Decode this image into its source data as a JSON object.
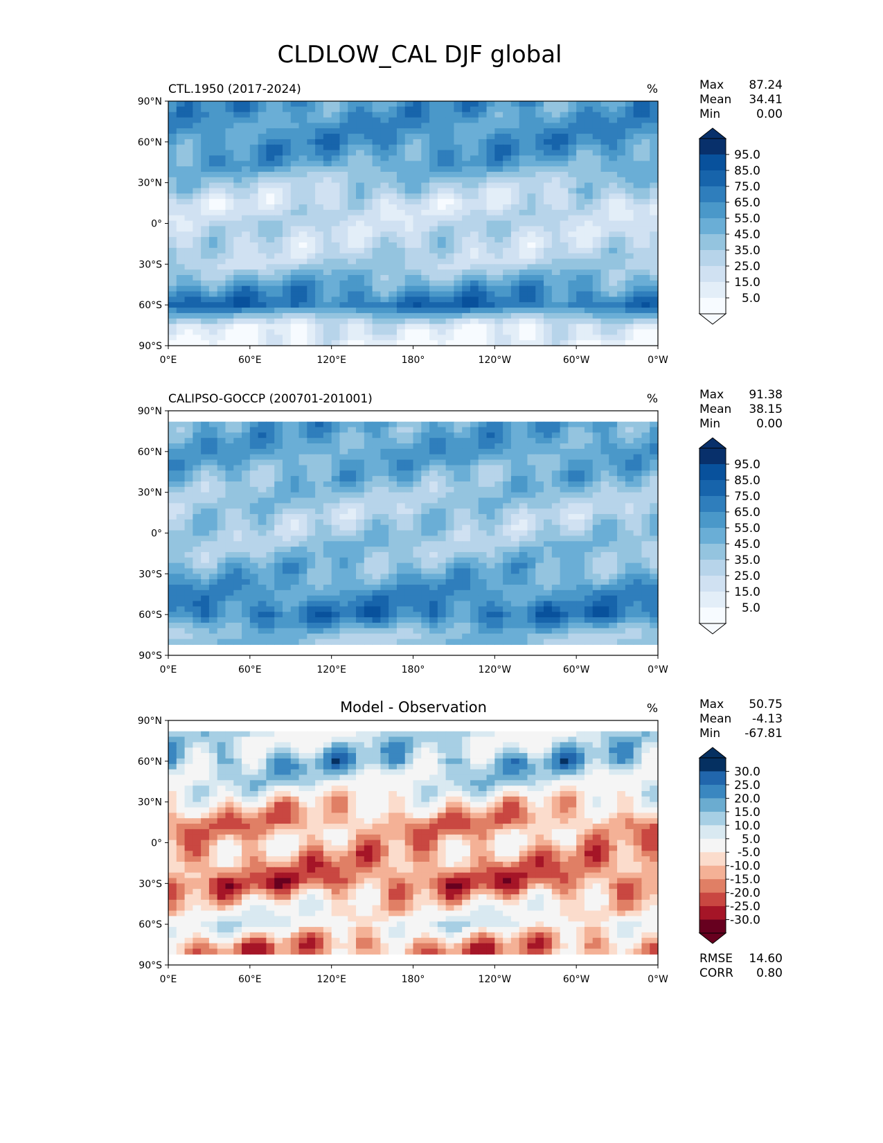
{
  "chart_data": {
    "type": "heatmap",
    "title": "CLDLOW_CAL DJF global",
    "x_ticks": [
      "0°E",
      "60°E",
      "120°E",
      "180°",
      "120°W",
      "60°W",
      "0°W"
    ],
    "y_ticks": [
      "90°N",
      "60°N",
      "30°N",
      "0°",
      "30°S",
      "60°S",
      "90°S"
    ],
    "xlim": [
      0,
      360
    ],
    "ylim": [
      -90,
      90
    ],
    "profile_latitudes": [
      90,
      75,
      60,
      45,
      30,
      15,
      0,
      -15,
      -30,
      -45,
      -60,
      -75,
      -90
    ],
    "panels": [
      {
        "name": "model",
        "title": "CTL.1950 (2017-2024)",
        "units": "%",
        "stats": [
          {
            "label": "Max",
            "value": "87.24"
          },
          {
            "label": "Mean",
            "value": "34.41"
          },
          {
            "label": "Min",
            "value": "0.00"
          }
        ],
        "colorbar_ticks": [
          "95.0",
          "85.0",
          "75.0",
          "65.0",
          "55.0",
          "45.0",
          "35.0",
          "25.0",
          "15.0",
          "5.0"
        ],
        "levels": [
          5,
          15,
          25,
          35,
          45,
          55,
          65,
          75,
          85,
          95
        ],
        "colors": [
          "#f7fbff",
          "#e3eef8",
          "#d0e1f2",
          "#b7d4ea",
          "#94c4df",
          "#6aaed6",
          "#4a98c9",
          "#2f7ebc",
          "#1764ab",
          "#08519c",
          "#08306b"
        ],
        "zonal_mean_estimate": [
          60,
          60,
          62,
          55,
          35,
          20,
          25,
          25,
          30,
          55,
          75,
          15,
          5
        ],
        "lat_coverage": [
          -90,
          90
        ]
      },
      {
        "name": "observation",
        "title": "CALIPSO-GOCCP (200701-201001)",
        "units": "%",
        "stats": [
          {
            "label": "Max",
            "value": "91.38"
          },
          {
            "label": "Mean",
            "value": "38.15"
          },
          {
            "label": "Min",
            "value": "0.00"
          }
        ],
        "colorbar_ticks": [
          "95.0",
          "85.0",
          "75.0",
          "65.0",
          "55.0",
          "45.0",
          "35.0",
          "25.0",
          "15.0",
          "5.0"
        ],
        "levels": [
          5,
          15,
          25,
          35,
          45,
          55,
          65,
          75,
          85,
          95
        ],
        "colors": [
          "#f7fbff",
          "#e3eef8",
          "#d0e1f2",
          "#b7d4ea",
          "#94c4df",
          "#6aaed6",
          "#4a98c9",
          "#2f7ebc",
          "#1764ab",
          "#08519c",
          "#08306b"
        ],
        "zonal_mean_estimate": [
          null,
          55,
          55,
          48,
          40,
          32,
          35,
          40,
          50,
          62,
          72,
          40,
          null
        ],
        "lat_coverage": [
          -82,
          82
        ]
      },
      {
        "name": "difference",
        "title": "Model - Observation",
        "units": "%",
        "stats": [
          {
            "label": "Max",
            "value": "50.75"
          },
          {
            "label": "Mean",
            "value": "-4.13"
          },
          {
            "label": "Min",
            "value": "-67.81"
          }
        ],
        "extra_stats": [
          {
            "label": "RMSE",
            "value": "14.60"
          },
          {
            "label": "CORR",
            "value": "0.80"
          }
        ],
        "colorbar_ticks": [
          "30.0",
          "25.0",
          "20.0",
          "15.0",
          "10.0",
          "5.0",
          "-5.0",
          "-10.0",
          "-15.0",
          "-20.0",
          "-25.0",
          "-30.0"
        ],
        "levels": [
          -30,
          -25,
          -20,
          -15,
          -10,
          -5,
          5,
          10,
          15,
          20,
          25,
          30
        ],
        "colors": [
          "#67001f",
          "#a51527",
          "#c94741",
          "#e07f65",
          "#f4b196",
          "#fbdccc",
          "#f5f5f5",
          "#d9e9f1",
          "#a7cfe4",
          "#6bacd0",
          "#3a87c0",
          "#2166ac",
          "#053061"
        ],
        "zonal_mean_estimate": [
          null,
          8,
          15,
          8,
          -5,
          -15,
          -10,
          -15,
          -20,
          -5,
          3,
          -15,
          null
        ],
        "lat_coverage": [
          -82,
          82
        ]
      }
    ]
  }
}
